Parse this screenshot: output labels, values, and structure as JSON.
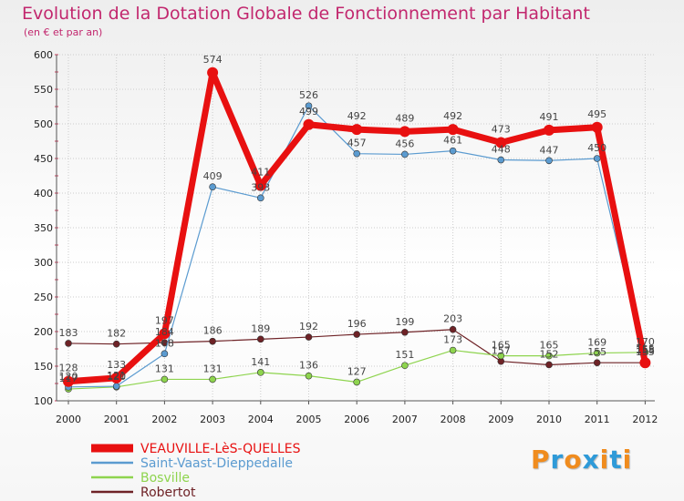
{
  "header": {
    "title": "Evolution de la Dotation Globale de Fonctionnement par Habitant",
    "subtitle": "(en € et par an)"
  },
  "logo": {
    "text": "Proxiti",
    "colors": [
      "#f08c1e",
      "#2e9ad8",
      "#f08c1e",
      "#2e9ad8",
      "#f08c1e",
      "#2e9ad8",
      "#f08c1e"
    ]
  },
  "colors": {
    "title": "#c2276e",
    "grid": "#cccccc",
    "axis": "#555555"
  },
  "chart_data": {
    "type": "line",
    "title": "Evolution de la Dotation Globale de Fonctionnement par Habitant",
    "subtitle": "(en € et par an)",
    "xlabel": "",
    "ylabel": "",
    "ylim": [
      100,
      600
    ],
    "yticks": [
      100,
      150,
      200,
      250,
      300,
      350,
      400,
      450,
      500,
      550,
      600
    ],
    "grid": true,
    "legend_position": "bottom-left",
    "x": [
      "2000",
      "2001",
      "2002",
      "2003",
      "2004",
      "2005",
      "2006",
      "2007",
      "2008",
      "2009",
      "2010",
      "2011",
      "2012"
    ],
    "series": [
      {
        "name": "VEAUVILLE-LèS-QUELLES",
        "color": "#e81010",
        "values": [
          128,
          133,
          197,
          574,
          411,
          499,
          492,
          489,
          492,
          473,
          491,
          495,
          155
        ],
        "labels": [
          "128",
          "133",
          "197",
          "574",
          "411",
          "499",
          "492",
          "489",
          "492",
          "473",
          "491",
          "495",
          "155"
        ]
      },
      {
        "name": "Saint-Vaast-Dieppedalle",
        "color": "#5b9bd0",
        "values": [
          120,
          121,
          168,
          409,
          393,
          526,
          457,
          456,
          461,
          448,
          447,
          450,
          158
        ],
        "labels": [
          "120",
          "121",
          "168",
          "409",
          "393",
          "526",
          "457",
          "456",
          "461",
          "448",
          "447",
          "450",
          "158"
        ]
      },
      {
        "name": "Bosville",
        "color": "#8ed44e",
        "values": [
          117,
          120,
          131,
          131,
          141,
          136,
          127,
          151,
          173,
          165,
          165,
          169,
          170
        ],
        "labels": [
          "117",
          "120",
          "131",
          "131",
          "141",
          "136",
          "127",
          "151",
          "173",
          "165",
          "165",
          "169",
          "170"
        ]
      },
      {
        "name": "Robertot",
        "color": "#6e2226",
        "values": [
          183,
          182,
          184,
          186,
          189,
          192,
          196,
          199,
          203,
          157,
          152,
          155,
          155
        ],
        "labels": [
          "183",
          "182",
          "184",
          "186",
          "189",
          "192",
          "196",
          "199",
          "203",
          "157",
          "152",
          "155",
          "155"
        ]
      }
    ]
  }
}
